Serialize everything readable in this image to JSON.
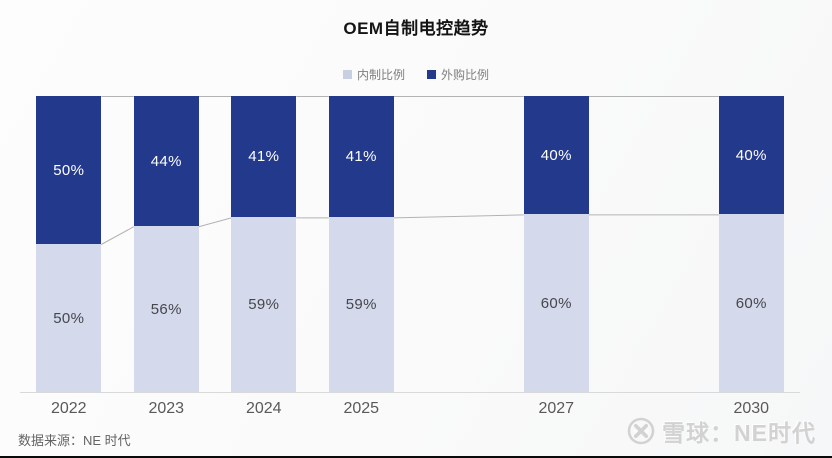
{
  "title": "OEM自制电控趋势",
  "legend": {
    "items": [
      {
        "label": "内制比例",
        "color": "#c9cfe2"
      },
      {
        "label": "外购比例",
        "color": "#23398c"
      }
    ]
  },
  "chart_data": {
    "type": "bar",
    "stacked": true,
    "title": "OEM自制电控趋势",
    "x_categories": [
      "2022",
      "2023",
      "2024",
      "2025",
      "2027",
      "2030"
    ],
    "slot_index": [
      0,
      1,
      2,
      3,
      5,
      7
    ],
    "total_slots": 8,
    "ylim": [
      0,
      100
    ],
    "unit": "%",
    "legend_position": "top",
    "grid": false,
    "series": [
      {
        "name": "内制比例",
        "position": "bottom",
        "color": "#d4d9ec",
        "label_color": "#46464c",
        "values": [
          50,
          56,
          59,
          59,
          60,
          60
        ],
        "labels": [
          "50%",
          "56%",
          "59%",
          "59%",
          "60%",
          "60%"
        ]
      },
      {
        "name": "外购比例",
        "position": "top",
        "color": "#23398c",
        "label_color": "#ffffff",
        "values": [
          50,
          44,
          41,
          41,
          40,
          40
        ],
        "labels": [
          "50%",
          "44%",
          "41%",
          "41%",
          "40%",
          "40%"
        ]
      }
    ],
    "connector_lines": true,
    "connector_color": "#b3b3b3",
    "axis_color": "#d9d9d9"
  },
  "footer": {
    "source": "数据来源：NE 时代",
    "watermark": "雪球：NE时代"
  }
}
